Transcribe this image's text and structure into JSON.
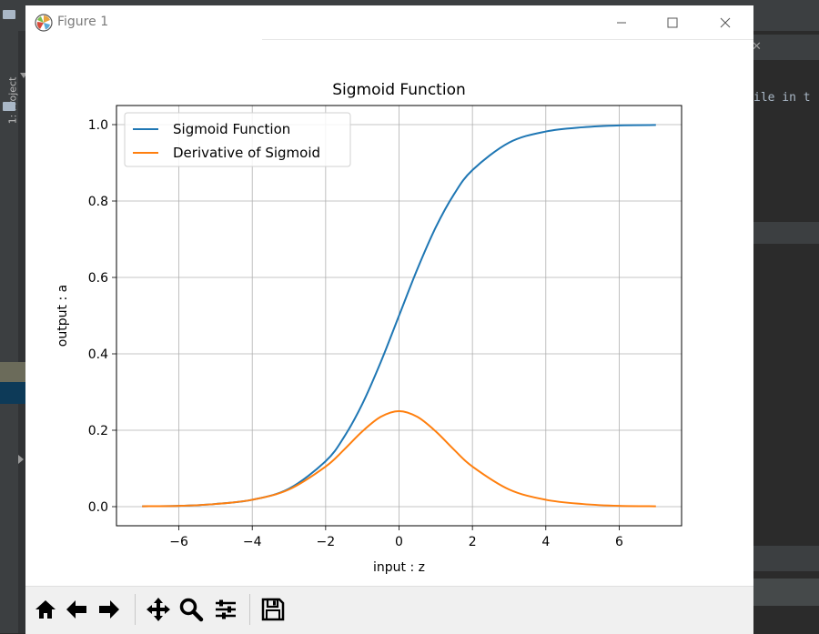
{
  "window": {
    "title": "Figure 1"
  },
  "ide": {
    "sidebar_label": "1: Project",
    "code_fragment": "ile in t"
  },
  "toolbar": {
    "buttons": [
      {
        "name": "home",
        "icon": "home-icon"
      },
      {
        "name": "back",
        "icon": "arrow-left-icon"
      },
      {
        "name": "forward",
        "icon": "arrow-right-icon"
      },
      {
        "name": "pan",
        "icon": "move-icon"
      },
      {
        "name": "zoom",
        "icon": "magnifier-icon"
      },
      {
        "name": "configure",
        "icon": "sliders-icon"
      },
      {
        "name": "save",
        "icon": "floppy-disk-icon"
      }
    ]
  },
  "chart_data": {
    "type": "line",
    "title": "Sigmoid Function",
    "xlabel": "input : z",
    "ylabel": "output : a",
    "xlim": [
      -7.7,
      7.7
    ],
    "ylim": [
      -0.05,
      1.05
    ],
    "xticks": [
      -6,
      -4,
      -2,
      0,
      2,
      4,
      6
    ],
    "xtick_labels": [
      "−6",
      "−4",
      "−2",
      "0",
      "2",
      "4",
      "6"
    ],
    "yticks": [
      0.0,
      0.2,
      0.4,
      0.6,
      0.8,
      1.0
    ],
    "ytick_labels": [
      "0.0",
      "0.2",
      "0.4",
      "0.6",
      "0.8",
      "1.0"
    ],
    "grid": true,
    "legend_position": "upper-left",
    "x_range": [
      -7,
      7
    ],
    "series": [
      {
        "name": "Sigmoid Function",
        "color": "#1f77b4",
        "x": [
          -7,
          -6,
          -5,
          -4,
          -3,
          -2,
          -1.5,
          -1,
          -0.5,
          0,
          0.5,
          1,
          1.5,
          2,
          3,
          4,
          5,
          6,
          7
        ],
        "y": [
          0.001,
          0.002,
          0.007,
          0.018,
          0.047,
          0.119,
          0.182,
          0.269,
          0.378,
          0.5,
          0.622,
          0.731,
          0.818,
          0.881,
          0.953,
          0.982,
          0.993,
          0.998,
          0.999
        ]
      },
      {
        "name": "Derivative of Sigmoid",
        "color": "#ff7f0e",
        "x": [
          -7,
          -6,
          -5,
          -4,
          -3,
          -2,
          -1.5,
          -1,
          -0.5,
          0,
          0.5,
          1,
          1.5,
          2,
          3,
          4,
          5,
          6,
          7
        ],
        "y": [
          0.001,
          0.002,
          0.007,
          0.018,
          0.045,
          0.105,
          0.149,
          0.197,
          0.235,
          0.25,
          0.235,
          0.197,
          0.149,
          0.105,
          0.045,
          0.018,
          0.007,
          0.002,
          0.001
        ]
      }
    ]
  }
}
